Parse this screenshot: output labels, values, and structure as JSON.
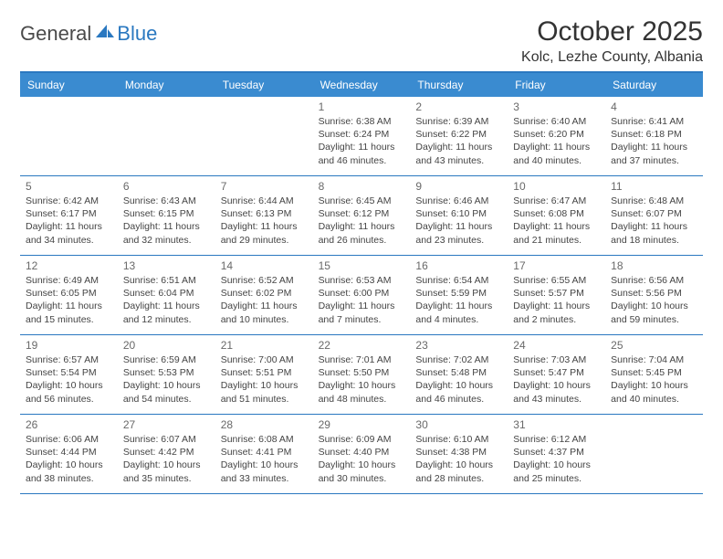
{
  "logo": {
    "general": "General",
    "blue": "Blue"
  },
  "title": "October 2025",
  "location": "Kolc, Lezhe County, Albania",
  "colors": {
    "accent": "#2a78c0",
    "header_bg": "#3a8bd0",
    "header_fg": "#ffffff",
    "day_number": "#696969",
    "body_text": "#444444"
  },
  "weekdays": [
    "Sunday",
    "Monday",
    "Tuesday",
    "Wednesday",
    "Thursday",
    "Friday",
    "Saturday"
  ],
  "weeks": [
    [
      null,
      null,
      null,
      {
        "n": "1",
        "sr": "Sunrise: 6:38 AM",
        "ss": "Sunset: 6:24 PM",
        "d1": "Daylight: 11 hours",
        "d2": "and 46 minutes."
      },
      {
        "n": "2",
        "sr": "Sunrise: 6:39 AM",
        "ss": "Sunset: 6:22 PM",
        "d1": "Daylight: 11 hours",
        "d2": "and 43 minutes."
      },
      {
        "n": "3",
        "sr": "Sunrise: 6:40 AM",
        "ss": "Sunset: 6:20 PM",
        "d1": "Daylight: 11 hours",
        "d2": "and 40 minutes."
      },
      {
        "n": "4",
        "sr": "Sunrise: 6:41 AM",
        "ss": "Sunset: 6:18 PM",
        "d1": "Daylight: 11 hours",
        "d2": "and 37 minutes."
      }
    ],
    [
      {
        "n": "5",
        "sr": "Sunrise: 6:42 AM",
        "ss": "Sunset: 6:17 PM",
        "d1": "Daylight: 11 hours",
        "d2": "and 34 minutes."
      },
      {
        "n": "6",
        "sr": "Sunrise: 6:43 AM",
        "ss": "Sunset: 6:15 PM",
        "d1": "Daylight: 11 hours",
        "d2": "and 32 minutes."
      },
      {
        "n": "7",
        "sr": "Sunrise: 6:44 AM",
        "ss": "Sunset: 6:13 PM",
        "d1": "Daylight: 11 hours",
        "d2": "and 29 minutes."
      },
      {
        "n": "8",
        "sr": "Sunrise: 6:45 AM",
        "ss": "Sunset: 6:12 PM",
        "d1": "Daylight: 11 hours",
        "d2": "and 26 minutes."
      },
      {
        "n": "9",
        "sr": "Sunrise: 6:46 AM",
        "ss": "Sunset: 6:10 PM",
        "d1": "Daylight: 11 hours",
        "d2": "and 23 minutes."
      },
      {
        "n": "10",
        "sr": "Sunrise: 6:47 AM",
        "ss": "Sunset: 6:08 PM",
        "d1": "Daylight: 11 hours",
        "d2": "and 21 minutes."
      },
      {
        "n": "11",
        "sr": "Sunrise: 6:48 AM",
        "ss": "Sunset: 6:07 PM",
        "d1": "Daylight: 11 hours",
        "d2": "and 18 minutes."
      }
    ],
    [
      {
        "n": "12",
        "sr": "Sunrise: 6:49 AM",
        "ss": "Sunset: 6:05 PM",
        "d1": "Daylight: 11 hours",
        "d2": "and 15 minutes."
      },
      {
        "n": "13",
        "sr": "Sunrise: 6:51 AM",
        "ss": "Sunset: 6:04 PM",
        "d1": "Daylight: 11 hours",
        "d2": "and 12 minutes."
      },
      {
        "n": "14",
        "sr": "Sunrise: 6:52 AM",
        "ss": "Sunset: 6:02 PM",
        "d1": "Daylight: 11 hours",
        "d2": "and 10 minutes."
      },
      {
        "n": "15",
        "sr": "Sunrise: 6:53 AM",
        "ss": "Sunset: 6:00 PM",
        "d1": "Daylight: 11 hours",
        "d2": "and 7 minutes."
      },
      {
        "n": "16",
        "sr": "Sunrise: 6:54 AM",
        "ss": "Sunset: 5:59 PM",
        "d1": "Daylight: 11 hours",
        "d2": "and 4 minutes."
      },
      {
        "n": "17",
        "sr": "Sunrise: 6:55 AM",
        "ss": "Sunset: 5:57 PM",
        "d1": "Daylight: 11 hours",
        "d2": "and 2 minutes."
      },
      {
        "n": "18",
        "sr": "Sunrise: 6:56 AM",
        "ss": "Sunset: 5:56 PM",
        "d1": "Daylight: 10 hours",
        "d2": "and 59 minutes."
      }
    ],
    [
      {
        "n": "19",
        "sr": "Sunrise: 6:57 AM",
        "ss": "Sunset: 5:54 PM",
        "d1": "Daylight: 10 hours",
        "d2": "and 56 minutes."
      },
      {
        "n": "20",
        "sr": "Sunrise: 6:59 AM",
        "ss": "Sunset: 5:53 PM",
        "d1": "Daylight: 10 hours",
        "d2": "and 54 minutes."
      },
      {
        "n": "21",
        "sr": "Sunrise: 7:00 AM",
        "ss": "Sunset: 5:51 PM",
        "d1": "Daylight: 10 hours",
        "d2": "and 51 minutes."
      },
      {
        "n": "22",
        "sr": "Sunrise: 7:01 AM",
        "ss": "Sunset: 5:50 PM",
        "d1": "Daylight: 10 hours",
        "d2": "and 48 minutes."
      },
      {
        "n": "23",
        "sr": "Sunrise: 7:02 AM",
        "ss": "Sunset: 5:48 PM",
        "d1": "Daylight: 10 hours",
        "d2": "and 46 minutes."
      },
      {
        "n": "24",
        "sr": "Sunrise: 7:03 AM",
        "ss": "Sunset: 5:47 PM",
        "d1": "Daylight: 10 hours",
        "d2": "and 43 minutes."
      },
      {
        "n": "25",
        "sr": "Sunrise: 7:04 AM",
        "ss": "Sunset: 5:45 PM",
        "d1": "Daylight: 10 hours",
        "d2": "and 40 minutes."
      }
    ],
    [
      {
        "n": "26",
        "sr": "Sunrise: 6:06 AM",
        "ss": "Sunset: 4:44 PM",
        "d1": "Daylight: 10 hours",
        "d2": "and 38 minutes."
      },
      {
        "n": "27",
        "sr": "Sunrise: 6:07 AM",
        "ss": "Sunset: 4:42 PM",
        "d1": "Daylight: 10 hours",
        "d2": "and 35 minutes."
      },
      {
        "n": "28",
        "sr": "Sunrise: 6:08 AM",
        "ss": "Sunset: 4:41 PM",
        "d1": "Daylight: 10 hours",
        "d2": "and 33 minutes."
      },
      {
        "n": "29",
        "sr": "Sunrise: 6:09 AM",
        "ss": "Sunset: 4:40 PM",
        "d1": "Daylight: 10 hours",
        "d2": "and 30 minutes."
      },
      {
        "n": "30",
        "sr": "Sunrise: 6:10 AM",
        "ss": "Sunset: 4:38 PM",
        "d1": "Daylight: 10 hours",
        "d2": "and 28 minutes."
      },
      {
        "n": "31",
        "sr": "Sunrise: 6:12 AM",
        "ss": "Sunset: 4:37 PM",
        "d1": "Daylight: 10 hours",
        "d2": "and 25 minutes."
      },
      null
    ]
  ]
}
